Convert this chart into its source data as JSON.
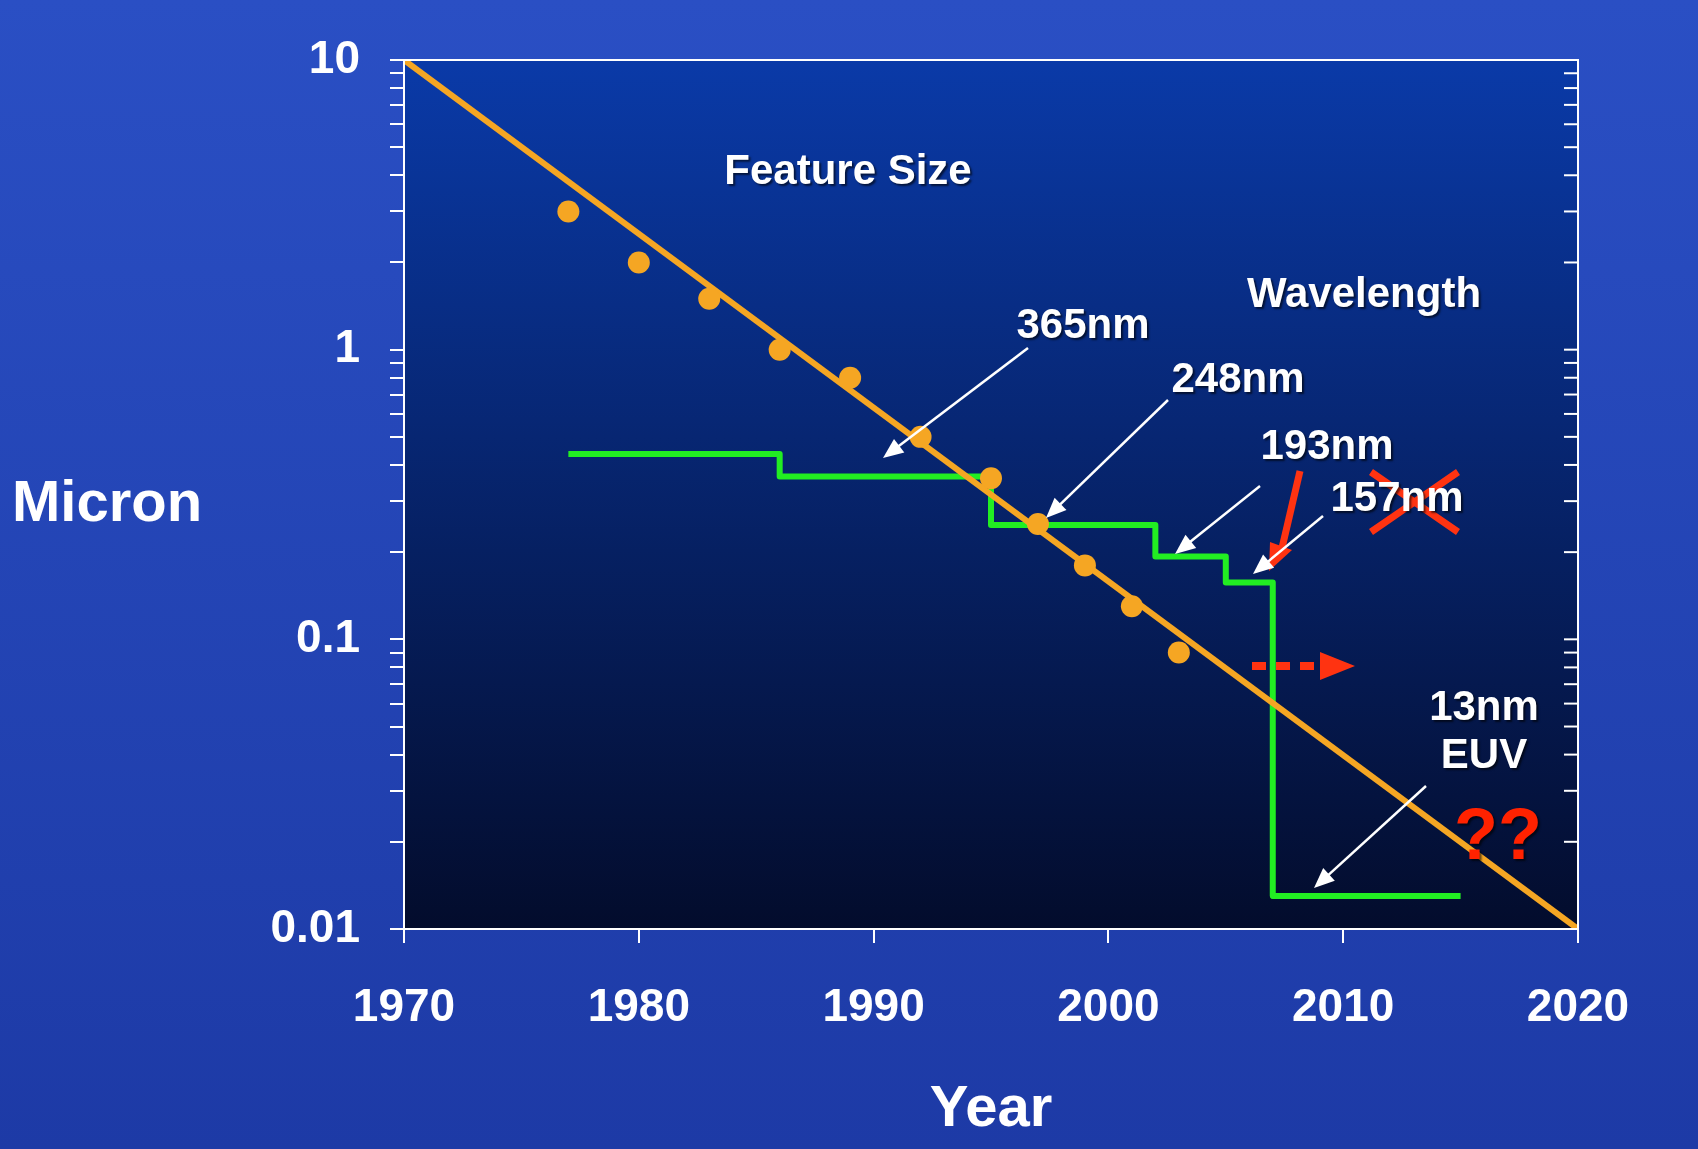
{
  "chart_data": {
    "type": "scatter",
    "xlabel": "Year",
    "ylabel": "Micron",
    "log": "y",
    "grid": false,
    "legend": false,
    "xlim": [
      1970,
      2020
    ],
    "xticks": [
      1970,
      1980,
      1990,
      2000,
      2010,
      2020
    ],
    "ylim": [
      0.01,
      10
    ],
    "yticks": [
      0.01,
      {
        "value": 0.02,
        "label": null
      },
      {
        "value": 0.03,
        "label": null
      },
      {
        "value": 0.04,
        "label": null
      },
      {
        "value": 0.05,
        "label": null
      },
      {
        "value": 0.06,
        "label": null
      },
      {
        "value": 0.07,
        "label": null
      },
      {
        "value": 0.08,
        "label": null
      },
      {
        "value": 0.09,
        "label": null
      },
      0.1,
      {
        "value": 0.2,
        "label": null
      },
      {
        "value": 0.3,
        "label": null
      },
      {
        "value": 0.4,
        "label": null
      },
      {
        "value": 0.5,
        "label": null
      },
      {
        "value": 0.6,
        "label": null
      },
      {
        "value": 0.7,
        "label": null
      },
      {
        "value": 0.8,
        "label": null
      },
      {
        "value": 0.9,
        "label": null
      },
      1,
      {
        "value": 2,
        "label": null
      },
      {
        "value": 3,
        "label": null
      },
      {
        "value": 4,
        "label": null
      },
      {
        "value": 5,
        "label": null
      },
      {
        "value": 6,
        "label": null
      },
      {
        "value": 7,
        "label": null
      },
      {
        "value": 8,
        "label": null
      },
      {
        "value": 9,
        "label": null
      },
      10
    ],
    "series": [
      {
        "type": "line",
        "color": "#f5a623",
        "marker": "none",
        "x": [
          1970,
          2020
        ],
        "values": [
          10,
          0.01
        ]
      },
      {
        "type": "scatter",
        "color": "#f5a623",
        "marker": "circle",
        "x": [
          1977,
          1980,
          1983,
          1986,
          1989,
          1992,
          1995,
          1997,
          1999,
          2001,
          2003
        ],
        "values": [
          3,
          2,
          1.5,
          1,
          0.8,
          0.5,
          0.36,
          0.25,
          0.18,
          0.13,
          0.09
        ]
      },
      {
        "type": "step",
        "color": "#22ee22",
        "marker": "none",
        "x": [
          1977,
          1986,
          1995,
          2002,
          2005,
          2007,
          2015
        ],
        "values": [
          0.436,
          0.365,
          0.248,
          0.193,
          0.157,
          0.013,
          0.013
        ]
      }
    ],
    "annotations": [
      "Feature Size",
      "Wavelength",
      "365nm",
      "248nm",
      "193nm",
      "157nm",
      "13nm\nEUV",
      "??"
    ]
  }
}
